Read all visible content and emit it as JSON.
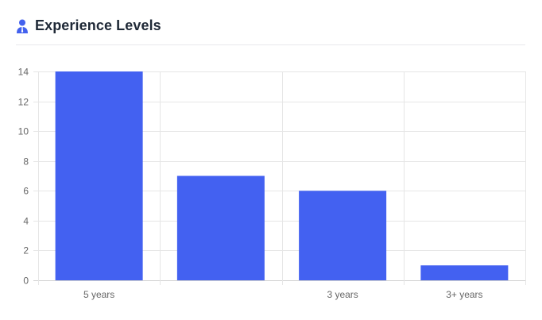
{
  "header": {
    "title": "Experience Levels",
    "icon": "user-tie-icon",
    "accent": "#4361ee"
  },
  "chart_data": {
    "type": "bar",
    "categories": [
      "5 years",
      "",
      "3 years",
      "3+ years"
    ],
    "values": [
      14,
      7,
      6,
      1
    ],
    "ylim": [
      0,
      14
    ],
    "yticks": [
      0,
      2,
      4,
      6,
      8,
      10,
      12,
      14
    ],
    "bar_color": "#4361f1",
    "grid": true,
    "legend": "none",
    "title": "",
    "xlabel": "",
    "ylabel": ""
  }
}
